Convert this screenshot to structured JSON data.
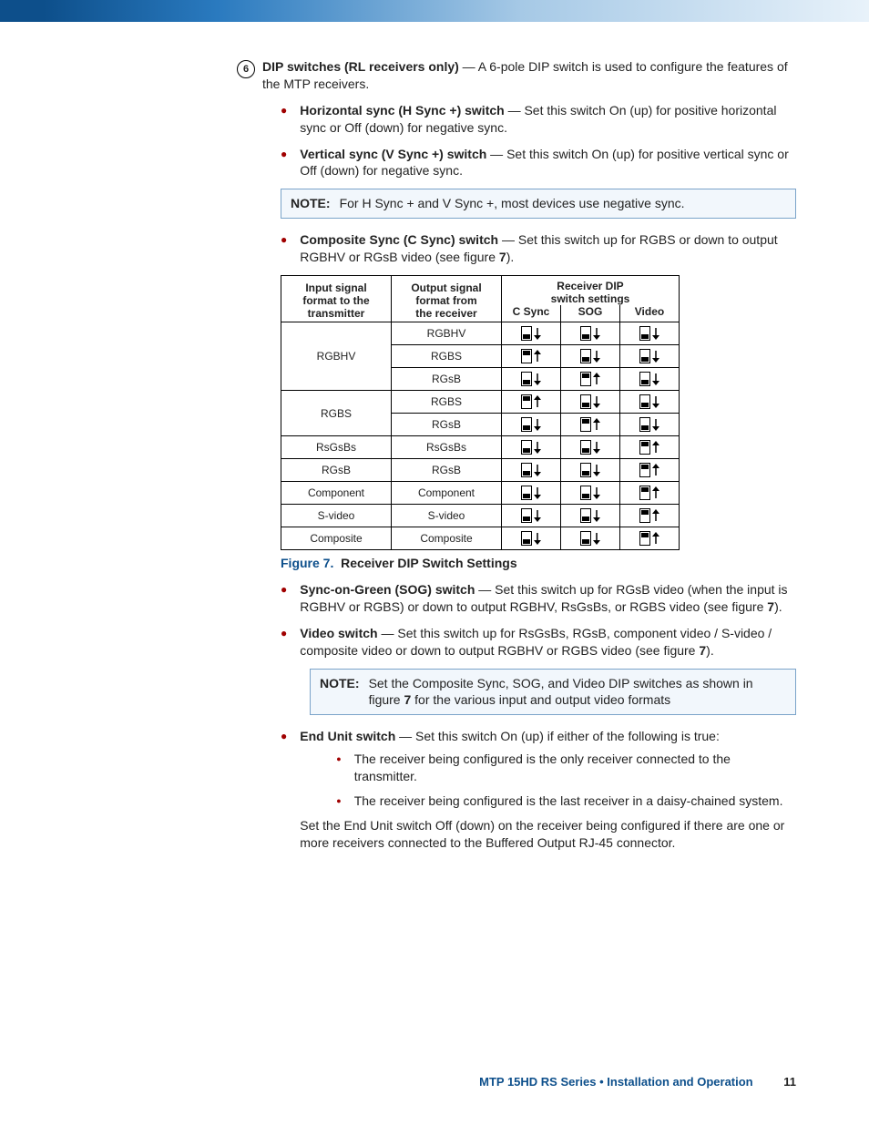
{
  "section_number": "6",
  "heading": {
    "bold": "DIP switches (RL receivers only)",
    "rest": " — A 6-pole DIP switch is used to configure the features of the MTP receivers."
  },
  "items": {
    "hsync": {
      "bold": "Horizontal sync (H Sync +) switch",
      "rest": " — Set this switch On (up) for positive horizontal sync or Off (down) for negative sync."
    },
    "vsync": {
      "bold": "Vertical sync (V Sync +) switch",
      "rest": " — Set this switch On (up) for positive vertical sync or Off (down) for negative sync."
    },
    "note1": {
      "label": "NOTE:",
      "text": "For H Sync + and V Sync +, most devices use negative sync."
    },
    "csync": {
      "bold": "Composite Sync (C Sync) switch",
      "rest_a": " — Set this switch up for RGBS or down to output RGBHV or RGsB video (see figure ",
      "fig": "7",
      "rest_b": ")."
    },
    "sog": {
      "bold": "Sync-on-Green (SOG) switch",
      "rest_a": " — Set this switch up for RGsB video (when the input is RGBHV or RGBS) or down to output RGBHV, RsGsBs, or RGBS video (see figure ",
      "fig": "7",
      "rest_b": ")."
    },
    "video": {
      "bold": "Video switch",
      "rest_a": " — Set this switch up for RsGsBs, RGsB, component video / S-video / composite video or down to output RGBHV or RGBS video (see figure ",
      "fig": "7",
      "rest_b": ")."
    },
    "note2": {
      "label": "NOTE:",
      "text_a": "Set the Composite Sync, SOG, and Video DIP switches as shown in figure ",
      "fig": "7",
      "text_b": " for the various input and output video formats"
    },
    "endunit": {
      "bold": "End Unit switch",
      "rest": " — Set this switch On (up) if either of the following is true:",
      "sub1": "The receiver being configured is the only receiver connected to the transmitter.",
      "sub2": "The receiver being configured is the last receiver in a daisy-chained system.",
      "after": "Set the End Unit switch Off (down) on the receiver being configured if there are one or more receivers connected to the Buffered Output RJ-45 connector."
    }
  },
  "figure": {
    "label": "Figure 7.",
    "title": "Receiver DIP Switch Settings"
  },
  "table": {
    "headers": {
      "input_l1": "Input signal",
      "input_l2": "format to the",
      "input_l3": "transmitter",
      "output_l1": "Output signal",
      "output_l2": "format from",
      "output_l3": "the receiver",
      "receiver_l1": "Receiver DIP",
      "receiver_l2": "switch settings",
      "csync": "C Sync",
      "sog": "SOG",
      "video": "Video"
    },
    "rows": [
      {
        "input": "RGBHV",
        "input_rowspan": 3,
        "output": "RGBHV",
        "sw": [
          "down",
          "down",
          "down"
        ]
      },
      {
        "output": "RGBS",
        "sw": [
          "up",
          "down",
          "down"
        ]
      },
      {
        "output": "RGsB",
        "sw": [
          "down",
          "up",
          "down"
        ]
      },
      {
        "input": "RGBS",
        "input_rowspan": 2,
        "output": "RGBS",
        "sw": [
          "up",
          "down",
          "down"
        ]
      },
      {
        "output": "RGsB",
        "sw": [
          "down",
          "up",
          "down"
        ]
      },
      {
        "input": "RsGsBs",
        "output": "RsGsBs",
        "sw": [
          "down",
          "down",
          "up"
        ]
      },
      {
        "input": "RGsB",
        "output": "RGsB",
        "sw": [
          "down",
          "down",
          "up"
        ]
      },
      {
        "input": "Component",
        "output": "Component",
        "sw": [
          "down",
          "down",
          "up"
        ]
      },
      {
        "input": "S-video",
        "output": "S-video",
        "sw": [
          "down",
          "down",
          "up"
        ]
      },
      {
        "input": "Composite",
        "output": "Composite",
        "sw": [
          "down",
          "down",
          "up"
        ]
      }
    ]
  },
  "footer": {
    "text": "MTP 15HD RS Series • Installation and Operation",
    "page": "11"
  }
}
